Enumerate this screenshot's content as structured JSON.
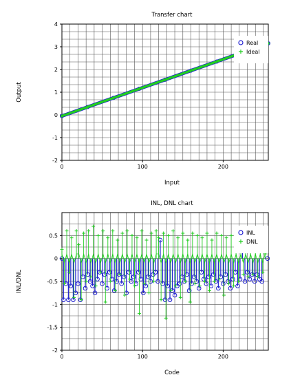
{
  "chart_data": [
    {
      "type": "line",
      "title": "Transfer chart",
      "xlabel": "Input",
      "ylabel": "Output",
      "xlim": [
        0,
        256
      ],
      "ylim": [
        -2,
        4
      ],
      "xticks": [
        "0",
        "100",
        "200"
      ],
      "yticks": [
        "-2",
        "-1",
        "0",
        "1",
        "2",
        "3",
        "4"
      ],
      "grid": true,
      "legend_position": "top-right",
      "series": [
        {
          "name": "Real",
          "marker": "circle",
          "color": "#1f1fd0",
          "x": [
            0,
            32,
            64,
            96,
            128,
            160,
            192,
            224,
            256
          ],
          "y": [
            -0.05,
            0.35,
            0.75,
            1.15,
            1.55,
            1.95,
            2.35,
            2.75,
            3.15
          ]
        },
        {
          "name": "Ideal",
          "marker": "plus",
          "color": "#22cc22",
          "x": [
            0,
            32,
            64,
            96,
            128,
            160,
            192,
            224,
            256
          ],
          "y": [
            -0.05,
            0.35,
            0.75,
            1.15,
            1.55,
            1.95,
            2.35,
            2.75,
            3.15
          ]
        }
      ]
    },
    {
      "type": "scatter",
      "title": "INL, DNL chart",
      "xlabel": "Code",
      "ylabel": "INL/DNL",
      "xlim": [
        0,
        256
      ],
      "ylim": [
        -2,
        1
      ],
      "xticks": [
        "0",
        "100",
        "200"
      ],
      "yticks": [
        "-2",
        "-1.5",
        "-1",
        "-0.5",
        "0",
        "0.5"
      ],
      "grid": true,
      "legend_position": "top-right",
      "series": [
        {
          "name": "INL",
          "marker": "circle",
          "color": "#1f1fd0",
          "x": [
            0,
            2,
            5,
            8,
            11,
            14,
            17,
            20,
            23,
            26,
            29,
            32,
            35,
            38,
            41,
            44,
            47,
            50,
            53,
            56,
            59,
            62,
            65,
            68,
            71,
            74,
            77,
            80,
            83,
            86,
            89,
            92,
            95,
            98,
            101,
            104,
            107,
            110,
            113,
            116,
            119,
            122,
            125,
            128,
            131,
            134,
            137,
            140,
            143,
            146,
            149,
            152,
            155,
            158,
            161,
            164,
            167,
            170,
            173,
            176,
            179,
            182,
            185,
            188,
            191,
            194,
            197,
            200,
            203,
            206,
            209,
            212,
            215,
            218,
            221,
            224,
            227,
            230,
            233,
            236,
            239,
            242,
            245,
            248,
            255
          ],
          "y": [
            0.0,
            -0.9,
            -0.55,
            -0.9,
            -0.6,
            -0.9,
            -0.75,
            -0.55,
            -0.9,
            -0.4,
            -0.65,
            -0.35,
            -0.5,
            -0.6,
            -0.75,
            -0.45,
            -0.3,
            -0.55,
            -0.35,
            -0.65,
            -0.3,
            -0.45,
            -0.7,
            -0.5,
            -0.35,
            -0.55,
            -0.4,
            -0.75,
            -0.3,
            -0.5,
            -0.4,
            -0.55,
            -0.3,
            -0.45,
            -0.75,
            -0.6,
            -0.4,
            -0.5,
            -0.35,
            -0.3,
            -0.5,
            0.4,
            -0.55,
            -0.9,
            -0.6,
            -0.9,
            -0.7,
            -0.8,
            -0.6,
            -0.55,
            -0.4,
            -0.5,
            -0.35,
            -0.7,
            -0.55,
            -0.4,
            -0.5,
            -0.65,
            -0.3,
            -0.45,
            -0.55,
            -0.4,
            -0.6,
            -0.35,
            -0.5,
            -0.65,
            -0.4,
            -0.55,
            -0.35,
            -0.5,
            -0.65,
            -0.45,
            -0.3,
            -0.6,
            -0.45,
            0.35,
            -0.5,
            -0.3,
            -0.45,
            -0.35,
            -0.5,
            -0.35,
            -0.45,
            -0.5,
            0.0
          ]
        },
        {
          "name": "DNL",
          "marker": "plus",
          "color": "#22cc22",
          "x": [
            0,
            3,
            6,
            9,
            12,
            15,
            18,
            21,
            24,
            27,
            30,
            33,
            36,
            39,
            42,
            45,
            48,
            51,
            54,
            57,
            60,
            63,
            66,
            69,
            72,
            75,
            78,
            81,
            84,
            87,
            90,
            93,
            96,
            99,
            102,
            105,
            108,
            111,
            114,
            117,
            120,
            123,
            126,
            129,
            132,
            135,
            138,
            141,
            144,
            147,
            150,
            153,
            156,
            159,
            162,
            165,
            168,
            171,
            174,
            177,
            180,
            183,
            186,
            189,
            192,
            195,
            198,
            201,
            204,
            207,
            210,
            213,
            216,
            219,
            222,
            225,
            228,
            231,
            234,
            237,
            240,
            243,
            246,
            249,
            252
          ],
          "y": [
            0.2,
            -0.55,
            0.6,
            -0.3,
            0.45,
            -0.85,
            0.6,
            0.3,
            -0.9,
            0.55,
            -0.5,
            0.6,
            -0.4,
            0.7,
            -0.6,
            0.5,
            -0.3,
            0.6,
            -0.95,
            0.45,
            -0.5,
            0.6,
            -0.7,
            0.4,
            -0.35,
            0.55,
            -0.8,
            0.6,
            -0.45,
            0.5,
            -0.6,
            0.45,
            -1.2,
            0.6,
            -0.55,
            0.4,
            -0.75,
            0.55,
            -0.5,
            0.6,
            0.45,
            -0.9,
            0.55,
            -1.3,
            0.5,
            -0.7,
            0.6,
            -0.6,
            0.45,
            -0.85,
            0.55,
            -0.5,
            0.4,
            -0.95,
            0.55,
            -0.55,
            0.5,
            -0.6,
            0.45,
            -0.5,
            0.55,
            -0.7,
            0.4,
            -0.5,
            0.55,
            -0.45,
            0.5,
            -0.8,
            0.45,
            -0.55,
            0.5,
            -0.6,
            0.4,
            -0.5,
            0.45,
            -0.35,
            0.2,
            -0.4,
            0.15,
            -0.35,
            0.2,
            -0.4,
            0.15,
            -0.3,
            0.1
          ]
        }
      ]
    }
  ]
}
